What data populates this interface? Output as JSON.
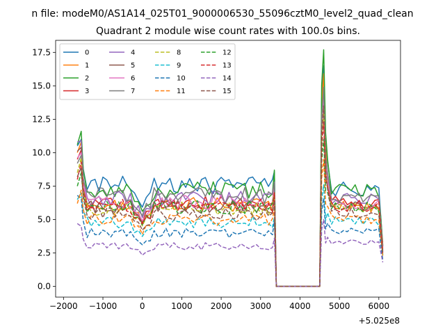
{
  "chart_data": {
    "type": "line",
    "suptitle": "n file: modeM0/AS1A14_025T01_9000006530_55096cztM0_level2_quad_clean",
    "title": "Quadrant 2 module wise count rates with 100.0s bins.",
    "xlabel": "",
    "ylabel": "",
    "offset_label": "+5.025e8",
    "xlim": [
      -2200,
      6550
    ],
    "ylim": [
      -0.8,
      18.4
    ],
    "xticks": [
      -2000,
      -1000,
      0,
      1000,
      2000,
      3000,
      4000,
      5000,
      6000
    ],
    "xtick_labels": [
      "−2000",
      "−1000",
      "0",
      "1000",
      "2000",
      "3000",
      "4000",
      "5000",
      "6000"
    ],
    "yticks": [
      0.0,
      2.5,
      5.0,
      7.5,
      10.0,
      12.5,
      15.0,
      17.5
    ],
    "ytick_labels": [
      "0.0",
      "2.5",
      "5.0",
      "7.5",
      "10.0",
      "12.5",
      "15.0",
      "17.5"
    ],
    "legend_position": "top-left",
    "gap": {
      "start": 3400,
      "end": 4500
    },
    "x_segment1": [
      -1650,
      -1600,
      -1550,
      -1500,
      -1400,
      -1300,
      -1200,
      -1100,
      -1000,
      -900,
      -800,
      -700,
      -600,
      -500,
      -400,
      -300,
      -200,
      -100,
      0,
      100,
      200,
      300,
      400,
      500,
      600,
      700,
      800,
      900,
      1000,
      1100,
      1200,
      1300,
      1400,
      1500,
      1600,
      1700,
      1800,
      1900,
      2000,
      2100,
      2200,
      2300,
      2400,
      2500,
      2600,
      2700,
      2800,
      2900,
      3000,
      3100,
      3200,
      3300,
      3350
    ],
    "x_segment2": [
      4550,
      4600,
      4650,
      4700,
      4800,
      4900,
      5000,
      5100,
      5200,
      5300,
      5400,
      5500,
      5600,
      5700,
      5800,
      5900,
      6000,
      6050,
      6100
    ],
    "series": [
      {
        "name": "0",
        "color": "#1f77b4",
        "dash": false,
        "pre": 10.5,
        "peak": 11.0,
        "plateau": 7.6,
        "jump": 8.6,
        "post_peak": 16.5,
        "post_plateau": 7.3,
        "end": 3.0
      },
      {
        "name": "1",
        "color": "#ff7f0e",
        "dash": false,
        "pre": 10.0,
        "peak": 10.8,
        "plateau": 6.1,
        "jump": 7.3,
        "post_peak": 15.9,
        "post_plateau": 6.0,
        "end": 3.3
      },
      {
        "name": "2",
        "color": "#2ca02c",
        "dash": false,
        "pre": 10.6,
        "peak": 11.6,
        "plateau": 7.2,
        "jump": 8.7,
        "post_peak": 17.7,
        "post_plateau": 7.2,
        "end": 3.1
      },
      {
        "name": "3",
        "color": "#d62728",
        "dash": false,
        "pre": 9.5,
        "peak": 10.2,
        "plateau": 6.2,
        "jump": 7.5,
        "post_peak": 14.3,
        "post_plateau": 6.3,
        "end": 3.0
      },
      {
        "name": "4",
        "color": "#9467bd",
        "dash": false,
        "pre": 10.8,
        "peak": 10.9,
        "plateau": 6.6,
        "jump": 7.8,
        "post_peak": 14.5,
        "post_plateau": 6.6,
        "end": 2.8
      },
      {
        "name": "5",
        "color": "#8c564b",
        "dash": false,
        "pre": 10.1,
        "peak": 10.4,
        "plateau": 6.0,
        "jump": 7.2,
        "post_peak": 13.7,
        "post_plateau": 6.0,
        "end": 2.7
      },
      {
        "name": "6",
        "color": "#e377c2",
        "dash": false,
        "pre": 9.6,
        "peak": 10.0,
        "plateau": 6.3,
        "jump": 7.4,
        "post_peak": 14.0,
        "post_plateau": 6.1,
        "end": 2.9
      },
      {
        "name": "7",
        "color": "#7f7f7f",
        "dash": false,
        "pre": 9.2,
        "peak": 9.8,
        "plateau": 6.8,
        "jump": 7.8,
        "post_peak": 14.9,
        "post_plateau": 6.7,
        "end": 2.6
      },
      {
        "name": "8",
        "color": "#bcbd22",
        "dash": true,
        "pre": 8.5,
        "peak": 9.6,
        "plateau": 5.8,
        "jump": 7.0,
        "post_peak": 13.2,
        "post_plateau": 5.9,
        "end": 2.6
      },
      {
        "name": "9",
        "color": "#17becf",
        "dash": true,
        "pre": 6.5,
        "peak": 7.0,
        "plateau": 4.8,
        "jump": 5.2,
        "post_peak": 7.6,
        "post_plateau": 4.9,
        "end": 2.4
      },
      {
        "name": "10",
        "color": "#1f77b4",
        "dash": true,
        "pre": 6.8,
        "peak": 6.6,
        "plateau": 4.0,
        "jump": 4.9,
        "post_peak": 6.6,
        "post_plateau": 4.2,
        "end": 2.0
      },
      {
        "name": "11",
        "color": "#ff7f0e",
        "dash": true,
        "pre": 6.2,
        "peak": 7.2,
        "plateau": 5.0,
        "jump": 5.8,
        "post_peak": 9.5,
        "post_plateau": 5.0,
        "end": 2.3
      },
      {
        "name": "12",
        "color": "#2ca02c",
        "dash": true,
        "pre": 7.5,
        "peak": 8.5,
        "plateau": 5.9,
        "jump": 6.8,
        "post_peak": 11.0,
        "post_plateau": 5.9,
        "end": 2.4
      },
      {
        "name": "13",
        "color": "#d62728",
        "dash": true,
        "pre": 8.0,
        "peak": 9.3,
        "plateau": 6.0,
        "jump": 7.0,
        "post_peak": 12.3,
        "post_plateau": 6.0,
        "end": 2.5
      },
      {
        "name": "14",
        "color": "#9467bd",
        "dash": true,
        "pre": 4.7,
        "peak": 4.5,
        "plateau": 3.0,
        "jump": 3.6,
        "post_peak": 5.0,
        "post_plateau": 3.3,
        "end": 1.8
      },
      {
        "name": "15",
        "color": "#8c564b",
        "dash": true,
        "pre": 8.2,
        "peak": 8.9,
        "plateau": 5.4,
        "jump": 6.4,
        "post_peak": 13.5,
        "post_plateau": 5.5,
        "end": 2.5
      }
    ]
  }
}
